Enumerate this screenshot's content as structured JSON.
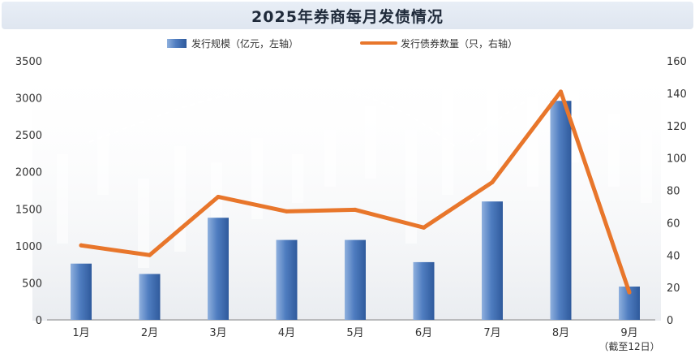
{
  "title": "2025年券商每月发债情况",
  "chart_data": {
    "type": "bar",
    "title": "2025年券商每月发债情况",
    "categories": [
      "1月",
      "2月",
      "3月",
      "4月",
      "5月",
      "6月",
      "7月",
      "8月",
      "9月"
    ],
    "category_note": "（截至12日）",
    "series": [
      {
        "name": "发行规模（亿元，左轴）",
        "type": "bar",
        "axis": "left",
        "color": "#4a76b8",
        "values": [
          760,
          620,
          1380,
          1080,
          1080,
          780,
          1600,
          2960,
          450
        ]
      },
      {
        "name": "发行债券数量（只，右轴）",
        "type": "line",
        "axis": "right",
        "color": "#e8762b",
        "values": [
          46,
          40,
          76,
          67,
          68,
          57,
          85,
          141,
          17
        ]
      }
    ],
    "left_axis": {
      "ylim": [
        0,
        3500
      ],
      "ticks": [
        "0",
        "500",
        "1000",
        "1500",
        "2000",
        "2500",
        "3000",
        "3500"
      ]
    },
    "right_axis": {
      "ylim": [
        0,
        160
      ],
      "ticks": [
        "0",
        "20",
        "40",
        "60",
        "80",
        "100",
        "120",
        "140",
        "160"
      ]
    },
    "legend_position": "top-center",
    "grid": false
  }
}
